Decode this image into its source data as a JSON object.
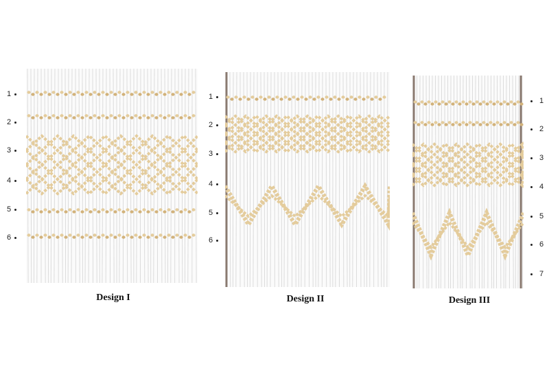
{
  "colors": {
    "fabric": "#fbfbfb",
    "pleat_line": "#d4d4d4",
    "stitch": "#e4cc9c",
    "stitch_dark": "#d2b27a",
    "edge": "#8a7a70",
    "label_text": "#222222"
  },
  "designs": [
    {
      "caption": "Design I",
      "row_labels": [
        "1",
        "2",
        "3",
        "4",
        "5",
        "6"
      ],
      "label_side": "left",
      "pattern": "cable-rows-top-and-bottom, diamond-lattice-middle"
    },
    {
      "caption": "Design II",
      "row_labels": [
        "1",
        "2",
        "3",
        "4",
        "5",
        "6"
      ],
      "label_side": "left",
      "pattern": "cable-row-top, diamond-lattice-band, large-zigzag-waves"
    },
    {
      "caption": "Design III",
      "row_labels": [
        "1",
        "2",
        "3",
        "4",
        "5",
        "6",
        "7"
      ],
      "label_side": "right",
      "pattern": "cable-rows-top, diamond-lattice, deep-zigzag-waves"
    }
  ]
}
